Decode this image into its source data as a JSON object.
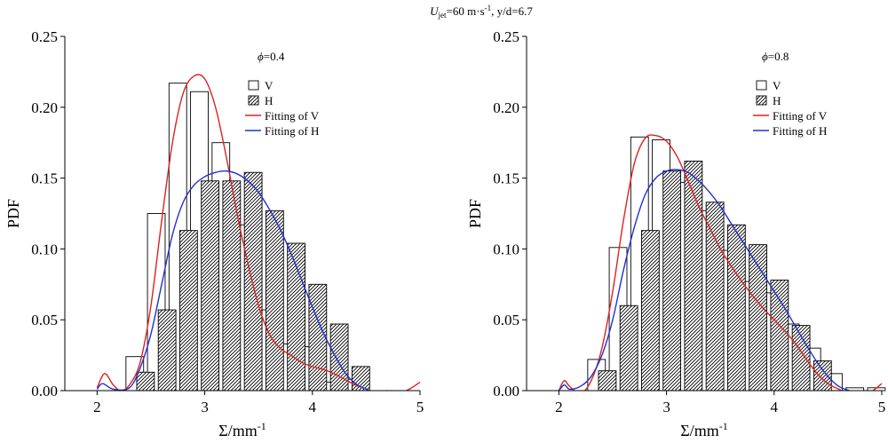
{
  "figure": {
    "title_main": "U",
    "title_sub": "jet",
    "title_mid": "=60 m·s",
    "title_sup": "-1",
    "title_rest": ",  y/d=6.7"
  },
  "chart_data": [
    {
      "type": "bar",
      "panel": "left",
      "condition_symbol": "ϕ",
      "condition_value": "=0.4",
      "xlabel_main": "Σ/mm",
      "xlabel_sup": "-1",
      "ylabel": "PDF",
      "xlim": [
        1.7,
        5.0
      ],
      "ylim": [
        0,
        0.25
      ],
      "xticks": [
        2,
        3,
        4,
        5
      ],
      "yticks": [
        0.0,
        0.05,
        0.1,
        0.15,
        0.2,
        0.25
      ],
      "ytick_labels": [
        "0.00",
        "0.05",
        "0.10",
        "0.15",
        "0.20",
        "0.25"
      ],
      "grid": false,
      "legend_position": "top-right",
      "legend": [
        {
          "label": "V",
          "kind": "open-bar"
        },
        {
          "label": "H",
          "kind": "hatched-bar"
        },
        {
          "label": "Fitting of V",
          "kind": "line",
          "color": "#e02020"
        },
        {
          "label": "Fitting of H",
          "kind": "line",
          "color": "#2030d0"
        }
      ],
      "bin_width": 0.2,
      "series": [
        {
          "name": "V",
          "x": [
            2.35,
            2.55,
            2.75,
            2.95,
            3.15,
            3.35,
            3.55,
            3.75,
            3.95,
            4.15,
            4.35
          ],
          "values": [
            0.024,
            0.125,
            0.217,
            0.211,
            0.175,
            0.117,
            0.057,
            0.033,
            0.031,
            0.006,
            0.008
          ]
        },
        {
          "name": "H",
          "x": [
            2.45,
            2.65,
            2.85,
            3.05,
            3.25,
            3.45,
            3.65,
            3.85,
            4.05,
            4.25,
            4.45
          ],
          "values": [
            0.013,
            0.057,
            0.113,
            0.148,
            0.148,
            0.154,
            0.127,
            0.104,
            0.075,
            0.047,
            0.017
          ]
        },
        {
          "name": "Fitting of V",
          "x": [
            2.0,
            2.07,
            2.15,
            2.22,
            2.3,
            2.4,
            2.5,
            2.6,
            2.7,
            2.8,
            2.9,
            3.0,
            3.1,
            3.2,
            3.3,
            3.4,
            3.5,
            3.6,
            3.7,
            3.8,
            3.9,
            4.0,
            4.1,
            4.2,
            4.3,
            4.4,
            4.5,
            4.6,
            4.75,
            4.9,
            5.0
          ],
          "values": [
            0.002,
            0.012,
            0.004,
            0.0,
            0.004,
            0.02,
            0.06,
            0.12,
            0.175,
            0.21,
            0.222,
            0.22,
            0.2,
            0.165,
            0.125,
            0.09,
            0.06,
            0.04,
            0.03,
            0.025,
            0.02,
            0.017,
            0.015,
            0.012,
            0.008,
            0.004,
            0.001,
            -0.003,
            -0.004,
            0.001,
            0.006
          ]
        },
        {
          "name": "Fitting of H",
          "x": [
            2.0,
            2.05,
            2.15,
            2.3,
            2.4,
            2.5,
            2.6,
            2.7,
            2.8,
            2.9,
            3.0,
            3.1,
            3.2,
            3.3,
            3.4,
            3.5,
            3.6,
            3.7,
            3.8,
            3.9,
            4.0,
            4.1,
            4.2,
            4.3,
            4.4,
            4.5,
            4.6,
            4.7
          ],
          "values": [
            0.001,
            0.005,
            0.001,
            0.002,
            0.016,
            0.04,
            0.075,
            0.11,
            0.133,
            0.145,
            0.151,
            0.154,
            0.155,
            0.153,
            0.148,
            0.14,
            0.128,
            0.114,
            0.097,
            0.078,
            0.059,
            0.041,
            0.026,
            0.013,
            0.005,
            0.001,
            -0.001,
            0.0
          ]
        }
      ]
    },
    {
      "type": "bar",
      "panel": "right",
      "condition_symbol": "ϕ",
      "condition_value": "=0.8",
      "xlabel_main": "Σ/mm",
      "xlabel_sup": "-1",
      "ylabel": "PDF",
      "xlim": [
        1.7,
        5.0
      ],
      "ylim": [
        0,
        0.25
      ],
      "xticks": [
        2,
        3,
        4,
        5
      ],
      "yticks": [
        0.0,
        0.05,
        0.1,
        0.15,
        0.2,
        0.25
      ],
      "ytick_labels": [
        "0.00",
        "0.05",
        "0.10",
        "0.15",
        "0.20",
        "0.25"
      ],
      "grid": false,
      "legend_position": "top-right",
      "legend": [
        {
          "label": "V",
          "kind": "open-bar"
        },
        {
          "label": "H",
          "kind": "hatched-bar"
        },
        {
          "label": "Fitting of V",
          "kind": "line",
          "color": "#e02020"
        },
        {
          "label": "Fitting of H",
          "kind": "line",
          "color": "#2030d0"
        }
      ],
      "bin_width": 0.2,
      "series": [
        {
          "name": "V",
          "x": [
            2.35,
            2.55,
            2.75,
            2.95,
            3.15,
            3.35,
            3.55,
            3.75,
            3.95,
            4.15,
            4.35,
            4.55,
            4.75,
            4.95
          ],
          "values": [
            0.022,
            0.101,
            0.179,
            0.177,
            0.147,
            0.127,
            0.099,
            0.077,
            0.069,
            0.047,
            0.03,
            0.012,
            0.002,
            0.002
          ]
        },
        {
          "name": "H",
          "x": [
            2.45,
            2.65,
            2.85,
            3.05,
            3.25,
            3.45,
            3.65,
            3.85,
            4.05,
            4.25,
            4.45
          ],
          "values": [
            0.014,
            0.06,
            0.113,
            0.155,
            0.162,
            0.133,
            0.117,
            0.103,
            0.078,
            0.046,
            0.021
          ]
        },
        {
          "name": "Fitting of V",
          "x": [
            2.0,
            2.05,
            2.1,
            2.2,
            2.3,
            2.4,
            2.5,
            2.6,
            2.7,
            2.8,
            2.9,
            3.0,
            3.1,
            3.2,
            3.3,
            3.4,
            3.5,
            3.6,
            3.7,
            3.8,
            3.9,
            4.0,
            4.1,
            4.2,
            4.3,
            4.4,
            4.5,
            4.6,
            4.7,
            4.8,
            4.9,
            5.0
          ],
          "values": [
            0.0,
            0.007,
            0.003,
            -0.002,
            0.007,
            0.03,
            0.07,
            0.12,
            0.16,
            0.178,
            0.18,
            0.176,
            0.165,
            0.148,
            0.13,
            0.115,
            0.1,
            0.088,
            0.077,
            0.067,
            0.058,
            0.05,
            0.042,
            0.033,
            0.022,
            0.012,
            0.005,
            0.001,
            -0.003,
            -0.005,
            -0.001,
            0.005
          ]
        },
        {
          "name": "Fitting of H",
          "x": [
            2.0,
            2.05,
            2.1,
            2.2,
            2.3,
            2.4,
            2.5,
            2.6,
            2.7,
            2.8,
            2.9,
            3.0,
            3.1,
            3.2,
            3.3,
            3.4,
            3.5,
            3.6,
            3.7,
            3.8,
            3.9,
            4.0,
            4.1,
            4.2,
            4.3,
            4.4,
            4.5,
            4.6,
            4.7
          ],
          "values": [
            0.0,
            0.004,
            0.001,
            0.003,
            0.01,
            0.025,
            0.05,
            0.085,
            0.115,
            0.138,
            0.15,
            0.155,
            0.156,
            0.154,
            0.148,
            0.14,
            0.13,
            0.118,
            0.106,
            0.094,
            0.082,
            0.07,
            0.058,
            0.045,
            0.032,
            0.02,
            0.01,
            0.003,
            0.0
          ]
        }
      ]
    }
  ]
}
